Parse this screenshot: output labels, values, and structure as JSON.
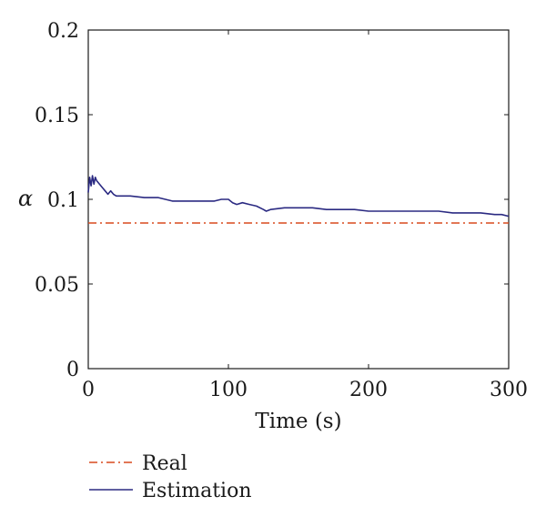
{
  "chart_data": {
    "type": "line",
    "title": "",
    "xlabel": "Time (s)",
    "ylabel": "α",
    "xlim": [
      0,
      300
    ],
    "ylim": [
      0,
      0.2
    ],
    "xticks": [
      0,
      100,
      200,
      300
    ],
    "xtick_labels": [
      "0",
      "100",
      "200",
      "300"
    ],
    "yticks": [
      0,
      0.05,
      0.1,
      0.15,
      0.2
    ],
    "ytick_labels": [
      "0",
      "0.05",
      "0.1",
      "0.15",
      "0.2"
    ],
    "grid": false,
    "legend_position": "below",
    "series": [
      {
        "name": "Real",
        "color": "#d94a1e",
        "dash": "dash-dot",
        "x": [
          0,
          300
        ],
        "y": [
          0.086,
          0.086
        ]
      },
      {
        "name": "Estimation",
        "color": "#2b2a82",
        "dash": "solid",
        "x": [
          0,
          1,
          2,
          3,
          4,
          5,
          6,
          8,
          10,
          12,
          14,
          16,
          18,
          20,
          25,
          30,
          40,
          50,
          55,
          60,
          70,
          80,
          90,
          95,
          100,
          103,
          106,
          110,
          115,
          120,
          125,
          127,
          130,
          140,
          150,
          160,
          170,
          180,
          190,
          200,
          210,
          220,
          230,
          240,
          250,
          260,
          270,
          280,
          290,
          295,
          300
        ],
        "y": [
          0.104,
          0.113,
          0.108,
          0.114,
          0.109,
          0.113,
          0.111,
          0.109,
          0.107,
          0.105,
          0.103,
          0.105,
          0.103,
          0.102,
          0.102,
          0.102,
          0.101,
          0.101,
          0.1,
          0.099,
          0.099,
          0.099,
          0.099,
          0.1,
          0.1,
          0.098,
          0.097,
          0.098,
          0.097,
          0.096,
          0.094,
          0.093,
          0.094,
          0.095,
          0.095,
          0.095,
          0.094,
          0.094,
          0.094,
          0.093,
          0.093,
          0.093,
          0.093,
          0.093,
          0.093,
          0.092,
          0.092,
          0.092,
          0.091,
          0.091,
          0.09
        ]
      }
    ]
  }
}
